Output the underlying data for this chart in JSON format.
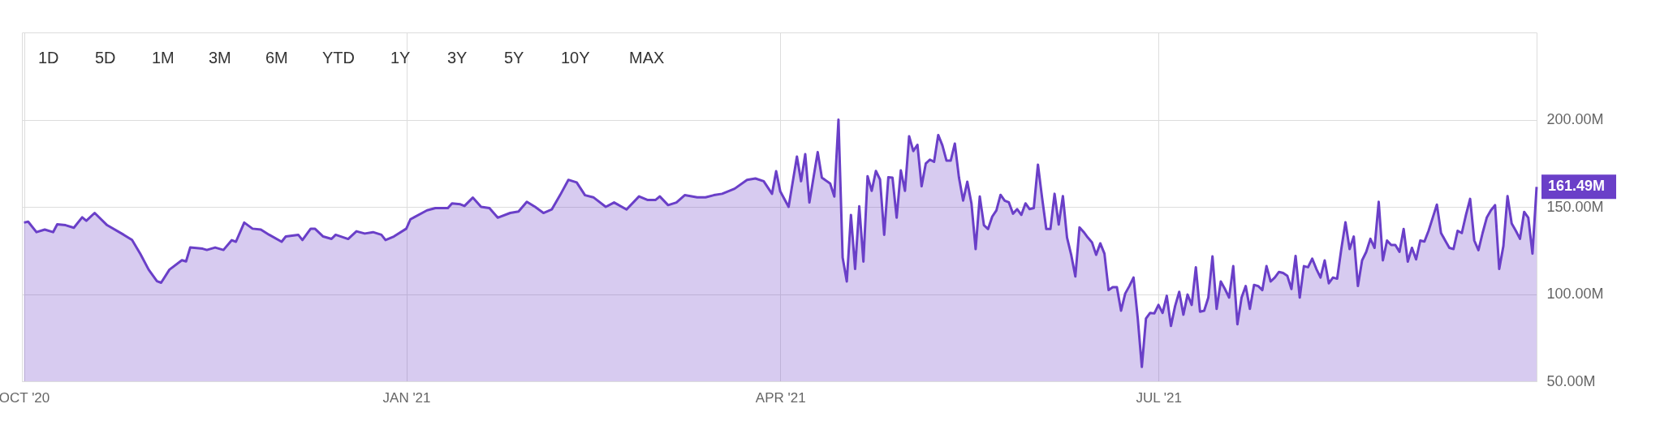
{
  "chart_data": {
    "type": "area",
    "x": [
      "2020-10-01",
      "2020-10-02",
      "2020-10-04",
      "2020-10-06",
      "2020-10-08",
      "2020-10-09",
      "2020-10-11",
      "2020-10-13",
      "2020-10-15",
      "2020-10-16",
      "2020-10-18",
      "2020-10-21",
      "2020-10-25",
      "2020-10-27",
      "2020-10-29",
      "2020-10-31",
      "2020-11-02",
      "2020-11-03",
      "2020-11-05",
      "2020-11-08",
      "2020-11-09",
      "2020-11-10",
      "2020-11-13",
      "2020-11-14",
      "2020-11-16",
      "2020-11-18",
      "2020-11-20",
      "2020-11-21",
      "2020-11-23",
      "2020-11-25",
      "2020-11-27",
      "2020-11-29",
      "2020-12-02",
      "2020-12-03",
      "2020-12-06",
      "2020-12-07",
      "2020-12-09",
      "2020-12-10",
      "2020-12-12",
      "2020-12-14",
      "2020-12-15",
      "2020-12-18",
      "2020-12-20",
      "2020-12-22",
      "2020-12-24",
      "2020-12-26",
      "2020-12-27",
      "2020-12-29",
      "2021-01-01",
      "2021-01-02",
      "2021-01-06",
      "2021-01-08",
      "2021-01-11",
      "2021-01-12",
      "2021-01-14",
      "2021-01-15",
      "2021-01-17",
      "2021-01-19",
      "2021-01-21",
      "2021-01-23",
      "2021-01-26",
      "2021-01-28",
      "2021-01-30",
      "2021-02-01",
      "2021-02-03",
      "2021-02-05",
      "2021-02-07",
      "2021-02-09",
      "2021-02-11",
      "2021-02-13",
      "2021-02-15",
      "2021-02-18",
      "2021-02-20",
      "2021-02-23",
      "2021-02-26",
      "2021-02-28",
      "2021-03-02",
      "2021-03-03",
      "2021-03-05",
      "2021-03-07",
      "2021-03-09",
      "2021-03-12",
      "2021-03-14",
      "2021-03-16",
      "2021-03-18",
      "2021-03-21",
      "2021-03-24",
      "2021-03-26",
      "2021-03-28",
      "2021-03-30",
      "2021-03-31",
      "2021-04-01",
      "2021-04-03",
      "2021-04-05",
      "2021-04-06",
      "2021-04-07",
      "2021-04-08",
      "2021-04-10",
      "2021-04-11",
      "2021-04-13",
      "2021-04-14",
      "2021-04-15",
      "2021-04-16",
      "2021-04-17",
      "2021-04-18",
      "2021-04-19",
      "2021-04-20",
      "2021-04-21",
      "2021-04-22",
      "2021-04-23",
      "2021-04-24",
      "2021-04-25",
      "2021-04-26",
      "2021-04-27",
      "2021-04-28",
      "2021-04-29",
      "2021-04-30",
      "2021-05-01",
      "2021-05-02",
      "2021-05-03",
      "2021-05-04",
      "2021-05-05",
      "2021-05-06",
      "2021-05-07",
      "2021-05-08",
      "2021-05-09",
      "2021-05-10",
      "2021-05-11",
      "2021-05-12",
      "2021-05-13",
      "2021-05-14",
      "2021-05-15",
      "2021-05-16",
      "2021-05-17",
      "2021-05-18",
      "2021-05-19",
      "2021-05-20",
      "2021-05-21",
      "2021-05-22",
      "2021-05-23",
      "2021-05-24",
      "2021-05-25",
      "2021-05-26",
      "2021-05-27",
      "2021-05-28",
      "2021-05-29",
      "2021-05-30",
      "2021-05-31",
      "2021-06-01",
      "2021-06-02",
      "2021-06-03",
      "2021-06-04",
      "2021-06-05",
      "2021-06-06",
      "2021-06-07",
      "2021-06-08",
      "2021-06-09",
      "2021-06-10",
      "2021-06-11",
      "2021-06-12",
      "2021-06-13",
      "2021-06-14",
      "2021-06-15",
      "2021-06-16",
      "2021-06-17",
      "2021-06-18",
      "2021-06-19",
      "2021-06-20",
      "2021-06-21",
      "2021-06-22",
      "2021-06-23",
      "2021-06-24",
      "2021-06-25",
      "2021-06-26",
      "2021-06-27",
      "2021-06-28",
      "2021-06-29",
      "2021-06-30",
      "2021-07-01",
      "2021-07-02",
      "2021-07-03",
      "2021-07-04",
      "2021-07-05",
      "2021-07-06",
      "2021-07-07",
      "2021-07-08",
      "2021-07-09",
      "2021-07-10",
      "2021-07-11",
      "2021-07-12",
      "2021-07-13",
      "2021-07-14",
      "2021-07-15",
      "2021-07-16",
      "2021-07-17",
      "2021-07-18",
      "2021-07-19",
      "2021-07-20",
      "2021-07-21",
      "2021-07-22",
      "2021-07-23",
      "2021-07-24",
      "2021-07-25",
      "2021-07-26",
      "2021-07-27",
      "2021-07-28",
      "2021-07-29",
      "2021-07-30",
      "2021-07-31",
      "2021-08-01",
      "2021-08-02",
      "2021-08-03",
      "2021-08-04",
      "2021-08-05",
      "2021-08-06",
      "2021-08-07",
      "2021-08-08",
      "2021-08-09",
      "2021-08-10",
      "2021-08-11",
      "2021-08-12",
      "2021-08-13",
      "2021-08-14",
      "2021-08-15",
      "2021-08-16",
      "2021-08-17",
      "2021-08-18",
      "2021-08-19",
      "2021-08-20",
      "2021-08-21",
      "2021-08-22",
      "2021-08-23",
      "2021-08-24",
      "2021-08-25",
      "2021-08-26",
      "2021-08-27",
      "2021-08-28",
      "2021-08-29",
      "2021-08-30",
      "2021-08-31",
      "2021-09-01",
      "2021-09-02",
      "2021-09-03",
      "2021-09-04",
      "2021-09-05",
      "2021-09-06",
      "2021-09-07",
      "2021-09-08",
      "2021-09-09",
      "2021-09-10",
      "2021-09-11",
      "2021-09-12",
      "2021-09-13",
      "2021-09-14",
      "2021-09-15",
      "2021-09-16",
      "2021-09-17",
      "2021-09-18",
      "2021-09-19",
      "2021-09-20",
      "2021-09-21",
      "2021-09-22",
      "2021-09-23",
      "2021-09-24",
      "2021-09-25",
      "2021-09-26",
      "2021-09-27",
      "2021-09-28",
      "2021-09-29",
      "2021-09-30"
    ],
    "series": [
      {
        "color": "#6a3fc8",
        "values": [
          141,
          141.5,
          135.5,
          137,
          135.5,
          140,
          139.5,
          138,
          144,
          142,
          146.5,
          139.5,
          134,
          131,
          123,
          114,
          107.4,
          106.5,
          114,
          119.4,
          118.7,
          126.7,
          126,
          125.3,
          126.7,
          125.3,
          130.9,
          130,
          141,
          137.5,
          137,
          134,
          130,
          133,
          134,
          131,
          137.5,
          137.5,
          133,
          131.6,
          134,
          131.6,
          136,
          134.7,
          135.5,
          134,
          131,
          133,
          137.5,
          142.9,
          148,
          149.3,
          149.3,
          152,
          151.5,
          150.5,
          155.3,
          150,
          149.3,
          143.8,
          146.5,
          147.3,
          152.9,
          150,
          146.5,
          148.5,
          156.7,
          165.5,
          164,
          156.7,
          155.5,
          150,
          152.5,
          148.5,
          156,
          154,
          154,
          156,
          151,
          152.5,
          156.7,
          155.5,
          155.5,
          156.7,
          157.5,
          160.4,
          165.5,
          166.3,
          164.7,
          157.5,
          170.5,
          158.8,
          150,
          178.8,
          164.7,
          180.2,
          152.5,
          181.4,
          166.7,
          163.4,
          155.9,
          200,
          120.9,
          107.2,
          145.4,
          114.4,
          150.3,
          118.6,
          167.6,
          159.2,
          170.6,
          165.7,
          134,
          167,
          166.7,
          143.8,
          170.9,
          159.2,
          190.5,
          182,
          185.6,
          161.8,
          174.8,
          177.1,
          175.8,
          191.2,
          185.3,
          176.5,
          176.5,
          186.3,
          166.7,
          153.6,
          164.4,
          152,
          125.8,
          155.9,
          139.5,
          137.3,
          144.4,
          148,
          156.9,
          153.6,
          152.6,
          146.1,
          148.7,
          145.4,
          152,
          148.7,
          149.3,
          174.2,
          155.2,
          137.3,
          137.3,
          157.5,
          139.9,
          156.2,
          132.4,
          122.5,
          110.1,
          138.2,
          135.6,
          132.4,
          129.7,
          122.5,
          129.1,
          123.2,
          102.3,
          103.9,
          103.9,
          90.5,
          100.3,
          104.6,
          109.5,
          86.6,
          58.2,
          86,
          89.2,
          88.9,
          93.8,
          89.2,
          99,
          81.7,
          93.1,
          101.3,
          88.2,
          99.7,
          93.8,
          115.4,
          89.9,
          90.5,
          98,
          121.6,
          91.5,
          107.2,
          102.9,
          98,
          116,
          82.7,
          98,
          104.6,
          91.5,
          105.2,
          104.6,
          102.3,
          116,
          107.2,
          109.5,
          112.7,
          112.1,
          110.5,
          102.9,
          121.9,
          98,
          116,
          115.4,
          120.3,
          114.4,
          109.5,
          119.3,
          106.2,
          109.5,
          108.8,
          125.8,
          141.2,
          125.8,
          133,
          104.6,
          119.3,
          124.2,
          131.7,
          126.5,
          152.9,
          119.3,
          130.7,
          128.1,
          128.1,
          124.2,
          137.3,
          118.6,
          126.5,
          119.9,
          130.7,
          130.1,
          136.3,
          143.8,
          151.3,
          135,
          130.7,
          126.5,
          125.8,
          136.3,
          135,
          145.4,
          154.6,
          130.7,
          125.2,
          135,
          143.8,
          148,
          151,
          114.4,
          127.5,
          156.2,
          140.5,
          136.3,
          131.7,
          147.1,
          143.8,
          123.2,
          161.49
        ]
      }
    ],
    "xlim": [
      "2020-09-30T12:00",
      "2021-09-30"
    ],
    "xticks": [
      {
        "value": "2020-10-01",
        "label": "OCT '20"
      },
      {
        "value": "2021-01-01",
        "label": "JAN '21"
      },
      {
        "value": "2021-04-01",
        "label": "APR '21"
      },
      {
        "value": "2021-07-01",
        "label": "JUL '21"
      }
    ],
    "ylim": [
      50,
      250
    ],
    "yticks": [
      {
        "value": 50,
        "label": "50.00M"
      },
      {
        "value": 100,
        "label": "100.00M"
      },
      {
        "value": 150,
        "label": "150.00M"
      },
      {
        "value": 200,
        "label": "200.00M"
      }
    ],
    "grid": true,
    "annotations": [
      "1D",
      "5D",
      "1M",
      "3M",
      "6M",
      "YTD",
      "1Y",
      "3Y",
      "5Y",
      "10Y",
      "MAX",
      {
        "text": "161.49M",
        "x": "2021-09-30",
        "y": 161.49
      }
    ]
  }
}
